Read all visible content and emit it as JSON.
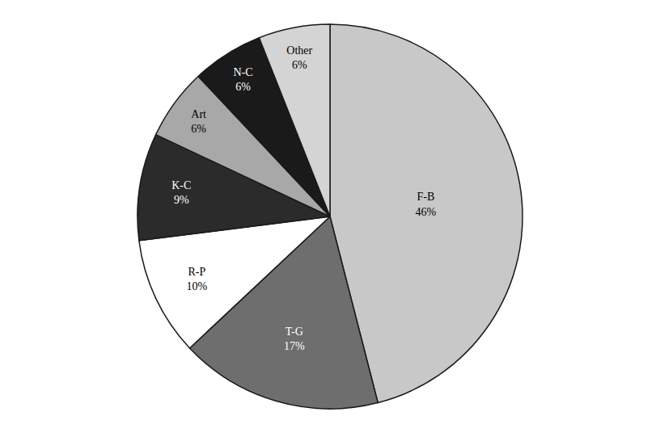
{
  "chart_data": {
    "type": "pie",
    "categories": [
      "F-B",
      "T-G",
      "R-P",
      "K-C",
      "Art",
      "N-C",
      "Other"
    ],
    "values": [
      46,
      17,
      10,
      9,
      6,
      6,
      6
    ],
    "value_labels": [
      "46%",
      "17%",
      "10%",
      "9%",
      "6%",
      "6%",
      "6%"
    ],
    "colors": [
      "#c8c8c8",
      "#6e6e6e",
      "#ffffff",
      "#2b2b2b",
      "#a8a8a8",
      "#1a1a1a",
      "#d4d4d4"
    ],
    "data_labels": true
  }
}
